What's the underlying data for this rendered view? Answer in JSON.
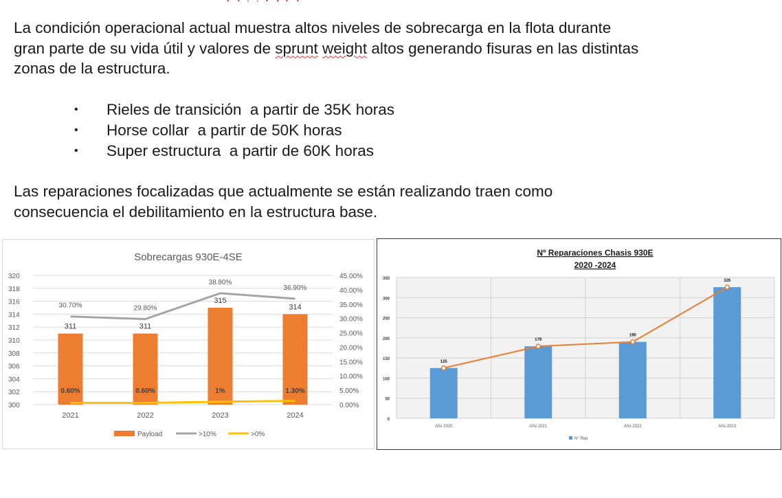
{
  "header_fragment": "[ ] . . [ ] [ ]",
  "intro": {
    "line1": "La condición operacional actual muestra  altos niveles de sobrecarga en la flota durante",
    "line2_a": "gran parte de su vida útil y valores de ",
    "line2_flag1": "sprunt",
    "line2_space": " ",
    "line2_flag2": "weight",
    "line2_b": " altos generando fisuras en las distintas",
    "line3": "zonas de la estructura."
  },
  "bullets": [
    "Rieles de transición  a partir de 35K horas",
    "Horse collar  a partir de 50K horas",
    "Super estructura  a partir de 60K horas"
  ],
  "bullet_symbol": "•",
  "closing": {
    "line1": "Las reparaciones focalizadas que actualmente se están realizando traen como",
    "line2": "consecuencia el debilitamiento en la estructura base."
  },
  "chart_data": [
    {
      "type": "bar",
      "title": "Sobrecargas 930E-4SE",
      "categories": [
        "2021",
        "2022",
        "2023",
        "2024"
      ],
      "series": [
        {
          "name": "Payload",
          "kind": "bar",
          "axis": "left",
          "values": [
            311,
            311,
            315,
            314
          ],
          "labels": [
            "311",
            "311",
            "315",
            "314"
          ],
          "color": "#ed7d31"
        },
        {
          "name": ">10%",
          "kind": "line",
          "axis": "right",
          "values": [
            30.7,
            29.8,
            38.8,
            36.9
          ],
          "labels": [
            "30.70%",
            "29.80%",
            "38.80%",
            "36.90%"
          ],
          "color": "#a5a5a5"
        },
        {
          "name": ">0%",
          "kind": "line",
          "axis": "right",
          "values": [
            0.6,
            0.6,
            1.0,
            1.3
          ],
          "labels": [
            "0.60%",
            "0.60%",
            "1%",
            "1.30%"
          ],
          "color": "#ffc000"
        }
      ],
      "y_left": {
        "min": 300,
        "max": 320,
        "step": 2,
        "ticks": [
          "300",
          "302",
          "304",
          "306",
          "308",
          "310",
          "312",
          "314",
          "316",
          "318",
          "320"
        ]
      },
      "y_right": {
        "min": 0,
        "max": 45,
        "step": 5,
        "ticks": [
          "0.00%",
          "5.00%",
          "10.00%",
          "15.00%",
          "20.00%",
          "25.00%",
          "30.00%",
          "35.00%",
          "40.00%",
          "45.00%"
        ]
      },
      "grid": true,
      "legend": "bottom"
    },
    {
      "type": "bar",
      "title_line1": "Nº Reparaciones Chasis 930E",
      "title_line2": "2020 -2024",
      "categories": [
        "Año 2020",
        "Año 2021",
        "Año 2022",
        "Año 2023"
      ],
      "series": [
        {
          "name": "N° Rep",
          "kind": "bar+line",
          "values": [
            125,
            179,
            190,
            326
          ],
          "labels": [
            "125",
            "179",
            "190",
            "326"
          ],
          "bar_color": "#5b9bd5",
          "line_color": "#ed7d31"
        }
      ],
      "y": {
        "min": 0,
        "max": 350,
        "step": 50,
        "ticks": [
          "0",
          "50",
          "100",
          "150",
          "200",
          "250",
          "300",
          "350"
        ]
      },
      "grid": true,
      "legend": "bottom"
    }
  ]
}
